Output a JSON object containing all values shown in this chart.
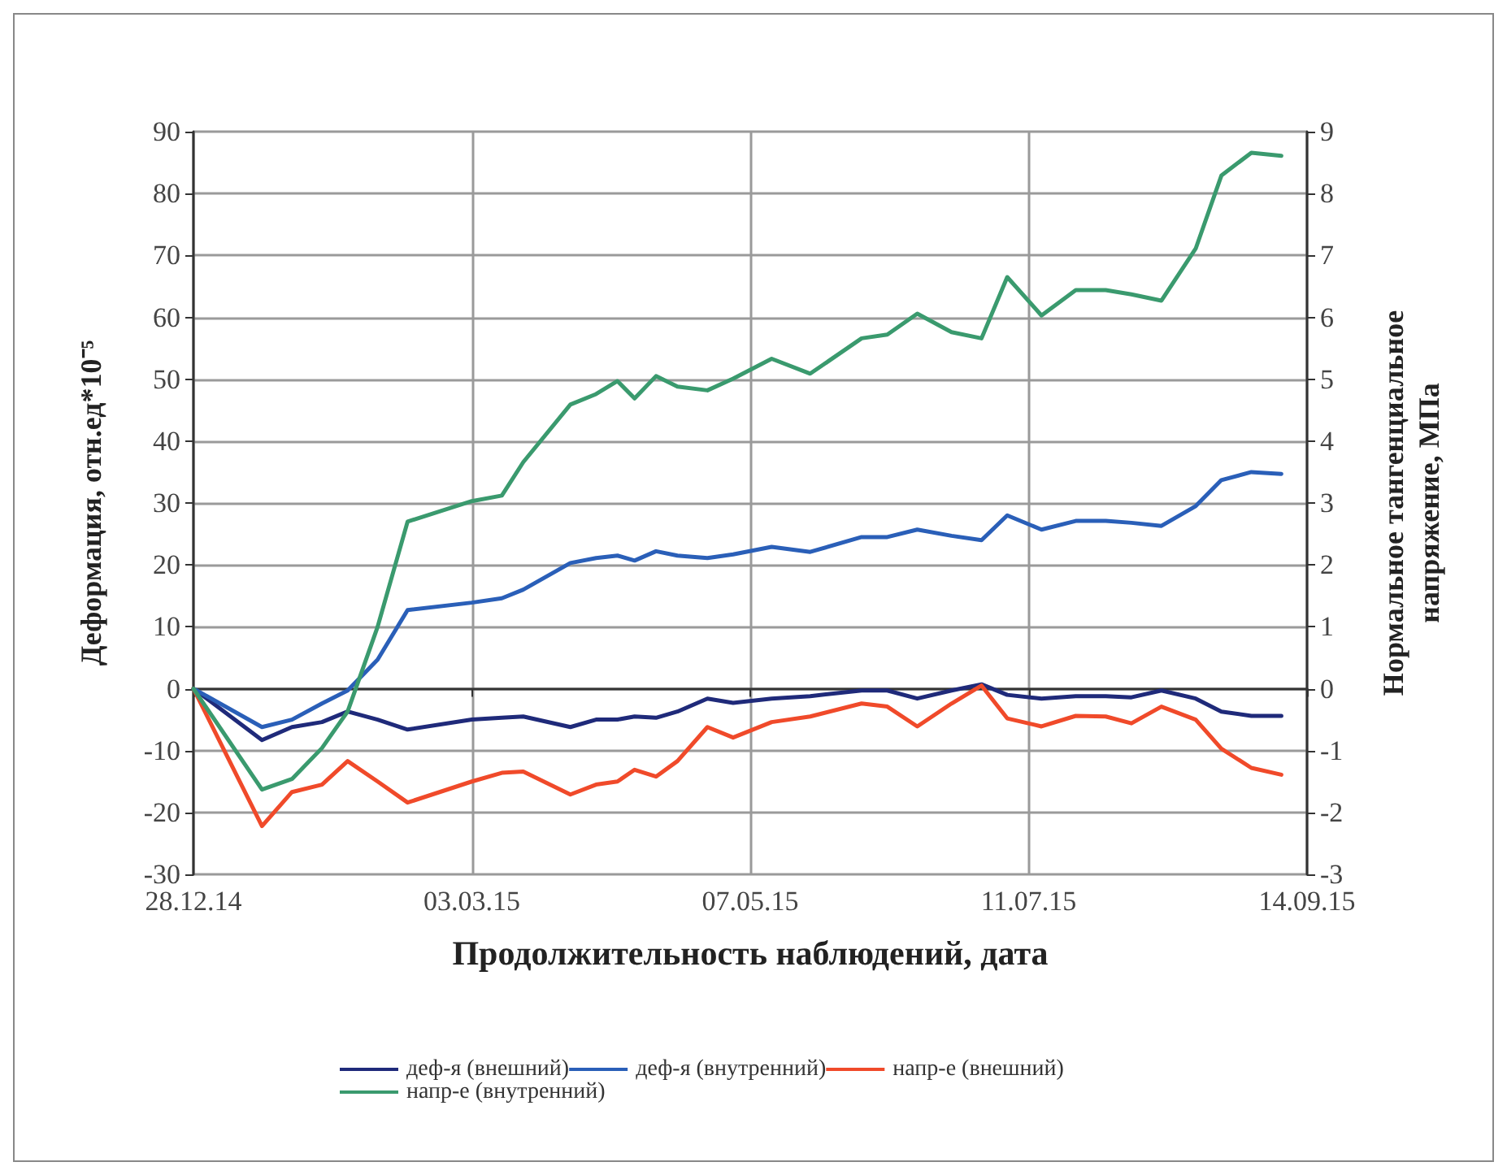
{
  "chart_data": {
    "type": "line",
    "xlabel": "Продолжительность наблюдений, дата",
    "ylabel": "Деформация, отн.ед*10⁻⁵",
    "y2label": "Нормальное тангенциальное\nнапряжение, МПа",
    "x": [
      "2014-12-28",
      "2015-01-13",
      "2015-01-20",
      "2015-01-27",
      "2015-02-02",
      "2015-02-09",
      "2015-02-16",
      "2015-03-03",
      "2015-03-10",
      "2015-03-15",
      "2015-03-26",
      "2015-04-01",
      "2015-04-06",
      "2015-04-10",
      "2015-04-15",
      "2015-04-20",
      "2015-04-27",
      "2015-05-03",
      "2015-05-12",
      "2015-05-21",
      "2015-06-02",
      "2015-06-08",
      "2015-06-15",
      "2015-06-23",
      "2015-06-30",
      "2015-07-06",
      "2015-07-14",
      "2015-07-22",
      "2015-07-29",
      "2015-08-04",
      "2015-08-11",
      "2015-08-19",
      "2015-08-25",
      "2015-09-01",
      "2015-09-08"
    ],
    "series": [
      {
        "name": "деф-я (внешний)",
        "color": "#1f2a7a",
        "values": [
          0,
          -8.3,
          -6.2,
          -5.4,
          -3.7,
          -5.0,
          -6.6,
          -5.0,
          -4.7,
          -4.5,
          -6.2,
          -5.0,
          -5.0,
          -4.5,
          -4.7,
          -3.7,
          -1.6,
          -2.3,
          -1.6,
          -1.2,
          -0.3,
          -0.3,
          -1.6,
          -0.3,
          0.7,
          -1.0,
          -1.6,
          -1.2,
          -1.2,
          -1.4,
          -0.3,
          -1.6,
          -3.7,
          -4.4,
          -4.4
        ]
      },
      {
        "name": "деф-я (внутренний)",
        "color": "#2a5fb8",
        "values": [
          0,
          -6.2,
          -5.0,
          -2.4,
          -0.3,
          4.7,
          12.7,
          13.9,
          14.6,
          16.0,
          20.3,
          21.1,
          21.5,
          20.7,
          22.2,
          21.5,
          21.1,
          21.7,
          22.9,
          22.1,
          24.5,
          24.5,
          25.7,
          24.7,
          24.0,
          28.0,
          25.7,
          27.1,
          27.1,
          26.8,
          26.3,
          29.5,
          33.7,
          35.0,
          34.7
        ]
      },
      {
        "name": "напр-е (внешний)",
        "color": "#f04a2a",
        "axis": "y2",
        "values": [
          0,
          -2.22,
          -1.67,
          -1.55,
          -1.17,
          -1.5,
          -1.84,
          -1.5,
          -1.36,
          -1.34,
          -1.71,
          -1.55,
          -1.5,
          -1.31,
          -1.42,
          -1.17,
          -0.62,
          -0.79,
          -0.54,
          -0.45,
          -0.24,
          -0.29,
          -0.61,
          -0.24,
          0.05,
          -0.48,
          -0.61,
          -0.44,
          -0.45,
          -0.56,
          -0.29,
          -0.5,
          -0.97,
          -1.28,
          -1.39
        ]
      },
      {
        "name": "напр-е (внутренний)",
        "color": "#3a9a6e",
        "axis": "y2",
        "values": [
          0,
          -1.63,
          -1.46,
          -0.96,
          -0.37,
          1.0,
          2.7,
          3.03,
          3.12,
          3.66,
          4.59,
          4.76,
          4.97,
          4.69,
          5.05,
          4.88,
          4.82,
          5.01,
          5.33,
          5.09,
          5.66,
          5.72,
          6.06,
          5.76,
          5.66,
          6.65,
          6.03,
          6.44,
          6.44,
          6.37,
          6.27,
          7.11,
          8.29,
          8.66,
          8.61
        ]
      }
    ],
    "xlim": [
      "2014-12-28",
      "2015-09-14"
    ],
    "xticks": [
      {
        "value": "2014-12-28",
        "label": "28.12.14"
      },
      {
        "value": "2015-03-03",
        "label": "03.03.15"
      },
      {
        "value": "2015-05-07",
        "label": "07.05.15"
      },
      {
        "value": "2015-07-11",
        "label": "11.07.15"
      },
      {
        "value": "2015-09-14",
        "label": "14.09.15"
      }
    ],
    "ylim": [
      -30,
      90
    ],
    "yticks": [
      -30,
      -20,
      -10,
      0,
      10,
      20,
      30,
      40,
      50,
      60,
      70,
      80,
      90
    ],
    "y2lim": [
      -3,
      9
    ],
    "y2ticks": [
      -3,
      -2,
      -1,
      0,
      1,
      2,
      3,
      4,
      5,
      6,
      7,
      8,
      9
    ],
    "grid": true,
    "legend": "bottom",
    "marker": "none",
    "line_style": "solid"
  }
}
